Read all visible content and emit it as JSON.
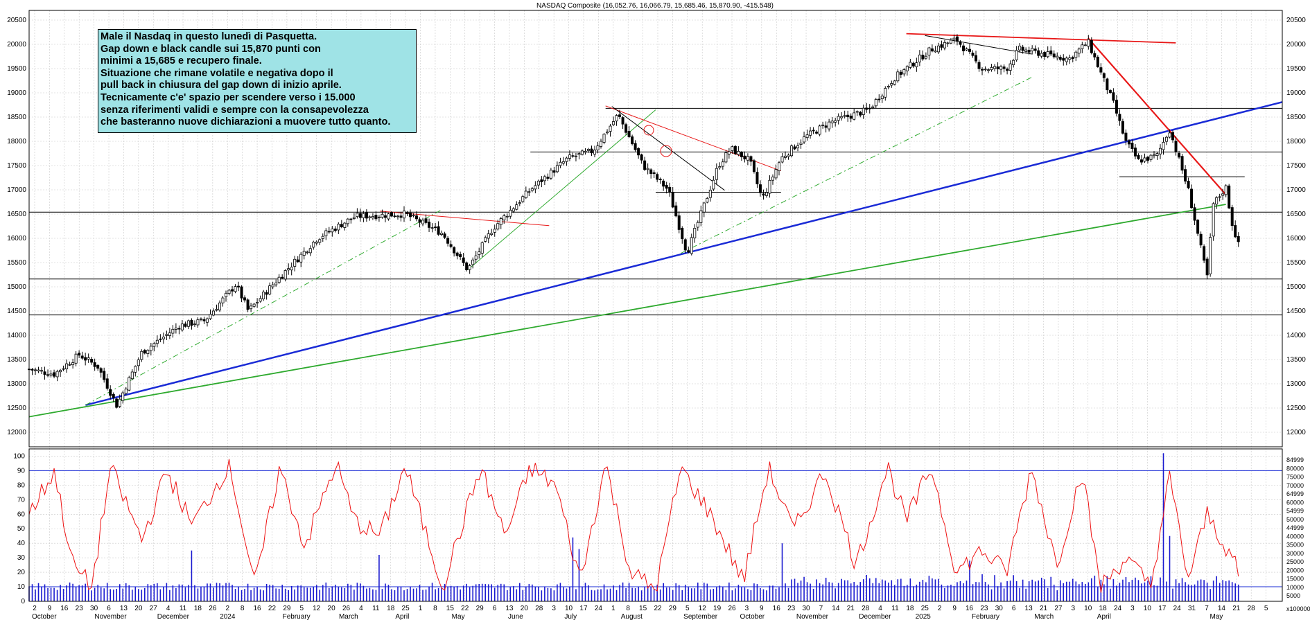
{
  "chart_data": {
    "type": "candlestick",
    "title": "NASDAQ Composite (16,052.76, 16,066.79, 15,685.46, 15,870.90, -415.548)",
    "price_axis": {
      "ylim": [
        11700,
        20700
      ],
      "ticks": [
        12000,
        12500,
        13000,
        13500,
        14000,
        14500,
        15000,
        15500,
        16000,
        16500,
        17000,
        17500,
        18000,
        18500,
        19000,
        19500,
        20000,
        20500
      ]
    },
    "oscillator_axis": {
      "ylim": [
        0,
        105
      ],
      "ticks": [
        0,
        10,
        20,
        30,
        40,
        50,
        60,
        70,
        80,
        90,
        100
      ],
      "reference_lines": [
        10,
        90
      ]
    },
    "volume_axis": {
      "ticks": [
        "84999",
        "80000",
        "75000",
        "70000",
        "64999",
        "60000",
        "54999",
        "50000",
        "44999",
        "40000",
        "35000",
        "30000",
        "25000",
        "20000",
        "15000",
        "10000",
        "5000"
      ],
      "unit_label": "x100000"
    },
    "x_ticks": [
      "2",
      "9",
      "16",
      "23",
      "30",
      "6",
      "13",
      "20",
      "27",
      "4",
      "11",
      "18",
      "26",
      "2",
      "8",
      "16",
      "22",
      "29",
      "5",
      "12",
      "20",
      "26",
      "4",
      "11",
      "18",
      "25",
      "1",
      "8",
      "15",
      "22",
      "29",
      "6",
      "13",
      "20",
      "28",
      "3",
      "10",
      "17",
      "24",
      "1",
      "8",
      "15",
      "22",
      "29",
      "5",
      "12",
      "19",
      "26",
      "3",
      "9",
      "16",
      "23",
      "30",
      "7",
      "14",
      "21",
      "28",
      "4",
      "11",
      "18",
      "25",
      "2",
      "9",
      "16",
      "23",
      "30",
      "6",
      "13",
      "21",
      "27",
      "3",
      "10",
      "18",
      "24",
      "3",
      "10",
      "17",
      "24",
      "31",
      "7",
      "14",
      "21",
      "28",
      "5"
    ],
    "month_labels": [
      "October",
      "November",
      "December",
      "2024",
      "February",
      "March",
      "April",
      "May",
      "June",
      "July",
      "August",
      "September",
      "October",
      "November",
      "December",
      "2025",
      "February",
      "March",
      "April",
      "May"
    ],
    "annotation_lines": [
      "Male il Nasdaq in questo lunedì di Pasquetta.",
      "Gap down e black candle sui 15,870 punti con",
      "minimi a 15,685 e recupero finale.",
      "Situazione che rimane volatile e negativa dopo il",
      "pull back in chiusura del gap down di inizio aprile.",
      "Tecnicamente c'e' spazio per scendere verso i 15.000",
      "senza riferimenti validi e sempre con la consapevolezza",
      "che basteranno nuove dichiarazioni a muovere tutto quanto."
    ],
    "horizontal_levels": [
      {
        "y": 18680,
        "from": 0.46,
        "to": 1.0
      },
      {
        "y": 17780,
        "from": 0.4,
        "to": 1.0
      },
      {
        "y": 16540,
        "from": 0.0,
        "to": 1.0
      },
      {
        "y": 15160,
        "from": 0.0,
        "to": 1.0
      },
      {
        "y": 14420,
        "from": 0.0,
        "to": 1.0
      },
      {
        "y": 16950,
        "from": 0.5,
        "to": 0.6
      },
      {
        "y": 17270,
        "from": 0.87,
        "to": 0.97
      }
    ],
    "colors": {
      "candle": "#000000",
      "oscillator": "#ee1111",
      "volume": "#1a1ad0",
      "trend_blue": "#1a2bd6",
      "trend_green": "#2faa2f",
      "trend_red": "#e81818",
      "annotation_bg": "#9fe3e6",
      "grid": "#c8c8c8"
    },
    "trendlines": [
      {
        "color": "blue",
        "width": 2.5,
        "from": [
          0.045,
          12560
        ],
        "to": [
          1.0,
          18810
        ]
      },
      {
        "color": "green",
        "width": 1.8,
        "from": [
          0.0,
          12320
        ],
        "to": [
          0.955,
          16700
        ]
      },
      {
        "color": "green",
        "width": 1,
        "dash": true,
        "from": [
          0.045,
          12560
        ],
        "to": [
          0.33,
          16600
        ]
      },
      {
        "color": "green",
        "width": 1,
        "dash": true,
        "from": [
          0.52,
          15690
        ],
        "to": [
          0.8,
          19320
        ]
      },
      {
        "color": "green",
        "width": 1,
        "from": [
          0.35,
          15350
        ],
        "to": [
          0.5,
          18650
        ]
      },
      {
        "color": "red",
        "width": 1,
        "from": [
          0.28,
          16560
        ],
        "to": [
          0.415,
          16260
        ]
      },
      {
        "color": "red",
        "width": 1,
        "from": [
          0.46,
          18730
        ],
        "to": [
          0.6,
          17390
        ]
      },
      {
        "color": "red",
        "width": 1.8,
        "from": [
          0.7,
          20220
        ],
        "to": [
          0.915,
          20030
        ]
      },
      {
        "color": "red",
        "width": 2.2,
        "from": [
          0.845,
          20130
        ],
        "to": [
          0.955,
          16900
        ]
      },
      {
        "color": "black",
        "width": 1,
        "from": [
          0.465,
          18720
        ],
        "to": [
          0.555,
          16990
        ]
      },
      {
        "color": "black",
        "width": 1,
        "from": [
          0.715,
          20180
        ],
        "to": [
          0.8,
          19800
        ]
      }
    ],
    "price_path": [
      [
        0.0,
        13300
      ],
      [
        0.02,
        13200
      ],
      [
        0.04,
        13600
      ],
      [
        0.055,
        13350
      ],
      [
        0.07,
        12550
      ],
      [
        0.09,
        13650
      ],
      [
        0.12,
        14200
      ],
      [
        0.14,
        14300
      ],
      [
        0.165,
        15050
      ],
      [
        0.175,
        14500
      ],
      [
        0.2,
        15200
      ],
      [
        0.23,
        16000
      ],
      [
        0.26,
        16450
      ],
      [
        0.3,
        16500
      ],
      [
        0.33,
        16100
      ],
      [
        0.35,
        15350
      ],
      [
        0.37,
        16200
      ],
      [
        0.4,
        17000
      ],
      [
        0.43,
        17650
      ],
      [
        0.45,
        17800
      ],
      [
        0.47,
        18550
      ],
      [
        0.49,
        17500
      ],
      [
        0.51,
        17000
      ],
      [
        0.525,
        15700
      ],
      [
        0.55,
        17500
      ],
      [
        0.56,
        17850
      ],
      [
        0.575,
        17600
      ],
      [
        0.585,
        16800
      ],
      [
        0.6,
        17650
      ],
      [
        0.62,
        18100
      ],
      [
        0.64,
        18400
      ],
      [
        0.67,
        18650
      ],
      [
        0.69,
        19300
      ],
      [
        0.72,
        19900
      ],
      [
        0.74,
        20100
      ],
      [
        0.76,
        19500
      ],
      [
        0.78,
        19500
      ],
      [
        0.79,
        19900
      ],
      [
        0.81,
        19800
      ],
      [
        0.83,
        19700
      ],
      [
        0.845,
        20050
      ],
      [
        0.865,
        18800
      ],
      [
        0.875,
        18000
      ],
      [
        0.885,
        17600
      ],
      [
        0.9,
        17700
      ],
      [
        0.91,
        18250
      ],
      [
        0.925,
        17000
      ],
      [
        0.94,
        15200
      ],
      [
        0.945,
        16700
      ],
      [
        0.955,
        17050
      ],
      [
        0.96,
        16300
      ],
      [
        0.965,
        15870
      ]
    ],
    "oscillator_anchors": [
      [
        0.0,
        60
      ],
      [
        0.02,
        90
      ],
      [
        0.035,
        25
      ],
      [
        0.05,
        10
      ],
      [
        0.065,
        92
      ],
      [
        0.09,
        42
      ],
      [
        0.11,
        90
      ],
      [
        0.13,
        52
      ],
      [
        0.16,
        95
      ],
      [
        0.18,
        10
      ],
      [
        0.2,
        92
      ],
      [
        0.22,
        38
      ],
      [
        0.245,
        95
      ],
      [
        0.26,
        55
      ],
      [
        0.28,
        45
      ],
      [
        0.3,
        93
      ],
      [
        0.33,
        10
      ],
      [
        0.36,
        92
      ],
      [
        0.38,
        45
      ],
      [
        0.4,
        92
      ],
      [
        0.42,
        80
      ],
      [
        0.44,
        14
      ],
      [
        0.46,
        95
      ],
      [
        0.48,
        20
      ],
      [
        0.5,
        8
      ],
      [
        0.52,
        92
      ],
      [
        0.545,
        58
      ],
      [
        0.57,
        14
      ],
      [
        0.59,
        92
      ],
      [
        0.61,
        48
      ],
      [
        0.635,
        90
      ],
      [
        0.66,
        25
      ],
      [
        0.685,
        93
      ],
      [
        0.7,
        55
      ],
      [
        0.72,
        93
      ],
      [
        0.74,
        20
      ],
      [
        0.76,
        35
      ],
      [
        0.78,
        20
      ],
      [
        0.8,
        92
      ],
      [
        0.82,
        25
      ],
      [
        0.84,
        90
      ],
      [
        0.855,
        10
      ],
      [
        0.875,
        30
      ],
      [
        0.895,
        10
      ],
      [
        0.91,
        85
      ],
      [
        0.925,
        15
      ],
      [
        0.94,
        60
      ],
      [
        0.95,
        45
      ],
      [
        0.96,
        30
      ],
      [
        0.965,
        18
      ]
    ],
    "volume_baseline": 10,
    "volume_spikes": [
      {
        "x": 0.13,
        "value": 35
      },
      {
        "x": 0.28,
        "value": 32
      },
      {
        "x": 0.435,
        "value": 44
      },
      {
        "x": 0.44,
        "value": 36
      },
      {
        "x": 0.6,
        "value": 40
      },
      {
        "x": 0.75,
        "value": 28
      },
      {
        "x": 0.905,
        "value": 102
      },
      {
        "x": 0.91,
        "value": 45
      }
    ]
  }
}
